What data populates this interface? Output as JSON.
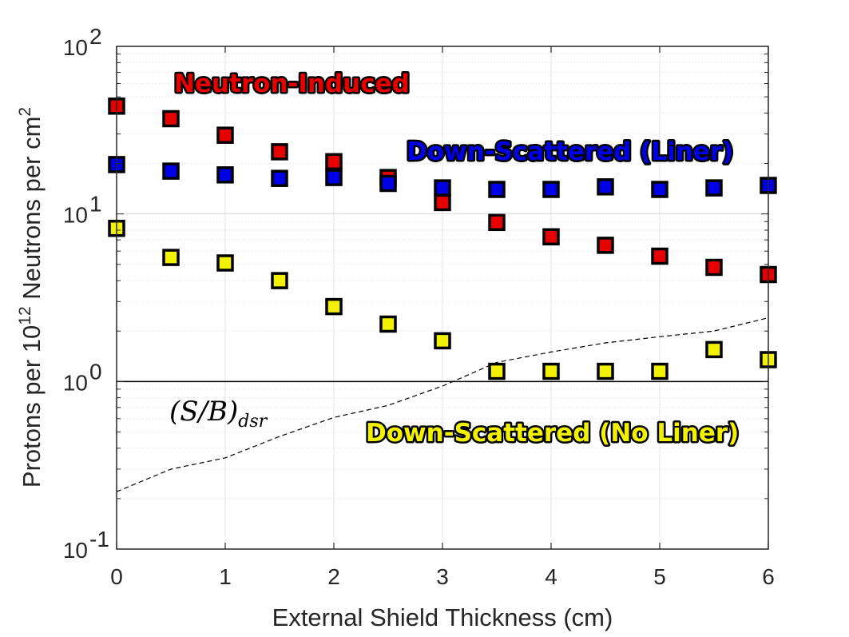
{
  "chart_data": {
    "type": "scatter",
    "xlabel": "External Shield Thickness (cm)",
    "ylabel": {
      "pre": "Protons per 10",
      "sup1": "12",
      "mid": " Neutrons per cm",
      "sup2": "2"
    },
    "xlim": [
      0,
      6
    ],
    "ylim": [
      0.1,
      100
    ],
    "yscale": "log",
    "grid": "on",
    "x_ticks": [
      "0",
      "1",
      "2",
      "3",
      "4",
      "5",
      "6"
    ],
    "y_ticks": [
      {
        "base": "10",
        "exp": "-1",
        "value": 0.1
      },
      {
        "base": "10",
        "exp": "0",
        "value": 1
      },
      {
        "base": "10",
        "exp": "1",
        "value": 10
      },
      {
        "base": "10",
        "exp": "2",
        "value": 100
      }
    ],
    "series": [
      {
        "name": "Neutron-Induced",
        "color": "#e60000",
        "x": [
          0,
          0.5,
          1,
          1.5,
          2,
          2.5,
          3,
          3.5,
          4,
          4.5,
          5,
          5.5,
          6
        ],
        "y": [
          44,
          37,
          29.5,
          23.5,
          20.5,
          16.5,
          11.7,
          8.9,
          7.3,
          6.5,
          5.6,
          4.8,
          4.35
        ]
      },
      {
        "name": "Down-Scattered (Liner)",
        "color": "#0000e6",
        "x": [
          0,
          0.5,
          1,
          1.5,
          2,
          2.5,
          3,
          3.5,
          4,
          4.5,
          5,
          5.5,
          6
        ],
        "y": [
          19.7,
          18,
          17.1,
          16.3,
          16.5,
          15.2,
          14.3,
          14,
          14,
          14.5,
          14,
          14.3,
          14.8
        ]
      },
      {
        "name": "Down-Scattered (No Liner)",
        "color": "#f2f200",
        "x": [
          0,
          0.5,
          1,
          1.5,
          2,
          2.5,
          3,
          3.5,
          4,
          4.5,
          5,
          5.5,
          6
        ],
        "y": [
          8.2,
          5.5,
          5.1,
          4,
          2.8,
          2.2,
          1.75,
          1.15,
          1.15,
          1.15,
          1.15,
          1.55,
          1.35
        ]
      }
    ],
    "reference_line": {
      "y": 1,
      "style": "solid",
      "color": "#000000"
    },
    "ratio_curve": {
      "label": "(S/B)_dsr",
      "style": "dashed",
      "x": [
        0,
        0.5,
        1,
        1.5,
        2,
        2.5,
        3,
        3.5,
        4,
        4.5,
        5,
        5.5,
        6
      ],
      "y": [
        0.22,
        0.3,
        0.35,
        0.47,
        0.61,
        0.72,
        0.94,
        1.3,
        1.5,
        1.7,
        1.85,
        2,
        2.4
      ]
    },
    "annotations": [
      {
        "text": "Neutron-Induced",
        "color": "#e60000"
      },
      {
        "text": "Down-Scattered (Liner)",
        "color": "#0000e6"
      },
      {
        "text": "Down-Scattered (No Liner)",
        "color": "#f2f200"
      }
    ],
    "ratio_label": {
      "main": "(S/B)",
      "sub": "dsr"
    }
  }
}
